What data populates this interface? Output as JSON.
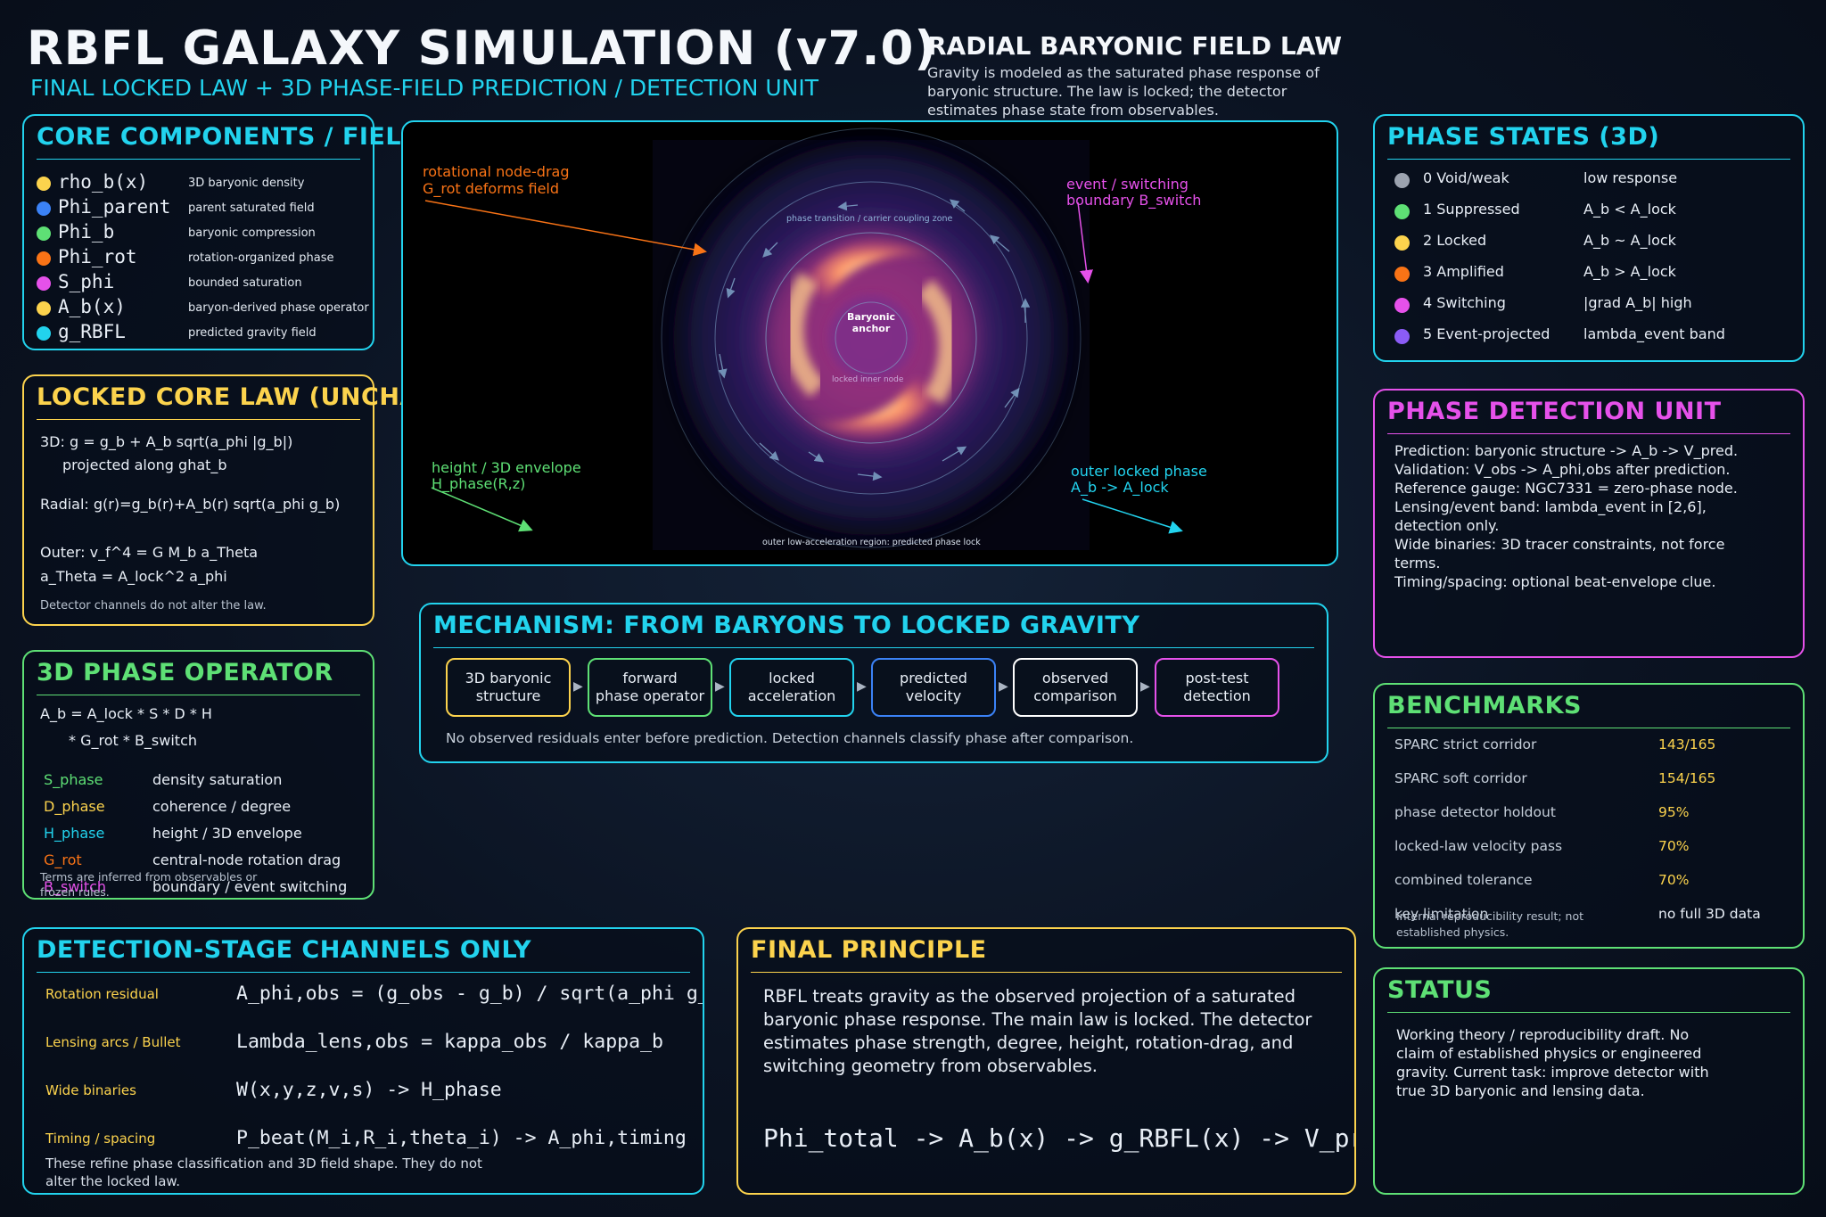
{
  "header": {
    "title": "RBFL GALAXY SIMULATION (v7.0)",
    "subtitle": "FINAL LOCKED LAW + 3D PHASE-FIELD PREDICTION / DETECTION UNIT",
    "law_title": "RADIAL BARYONIC FIELD LAW",
    "law_desc": [
      "Gravity is modeled as the saturated phase response of",
      "baryonic structure. The law is locked; the detector",
      "estimates phase state from observables."
    ]
  },
  "core": {
    "title": "CORE COMPONENTS / FIELDS",
    "items": [
      {
        "name": "rho_b(x)",
        "desc": "3D baryonic density",
        "color": "#fcd34d"
      },
      {
        "name": "Phi_parent",
        "desc": "parent saturated field",
        "color": "#3b82f6"
      },
      {
        "name": "Phi_b",
        "desc": "baryonic compression",
        "color": "#5ee075"
      },
      {
        "name": "Phi_rot",
        "desc": "rotation-organized phase",
        "color": "#f97316"
      },
      {
        "name": "S_phi",
        "desc": "bounded saturation",
        "color": "#e651ea"
      },
      {
        "name": "A_b(x)",
        "desc": "baryon-derived phase operator",
        "color": "#fcd34d"
      },
      {
        "name": "g_RBFL",
        "desc": "predicted gravity field",
        "color": "#22d3ee"
      }
    ]
  },
  "locked": {
    "title": "LOCKED CORE LAW (UNCHANGED)",
    "lines": [
      "3D: g = g_b + A_b sqrt(a_phi |g_b|)",
      "projected along ghat_b",
      "Radial: g(r)=g_b(r)+A_b(r) sqrt(a_phi g_b)",
      "Outer: v_f^4 = G M_b a_Theta",
      "a_Theta = A_lock^2 a_phi"
    ],
    "note": "Detector channels do not alter the law."
  },
  "operator": {
    "title": "3D PHASE OPERATOR",
    "eq1": "A_b = A_lock * S * D * H",
    "eq2": "* G_rot * B_switch",
    "terms": [
      {
        "name": "S_phase",
        "desc": "density saturation",
        "color": "#5ee075"
      },
      {
        "name": "D_phase",
        "desc": "coherence / degree",
        "color": "#fcd34d"
      },
      {
        "name": "H_phase",
        "desc": "height / 3D envelope",
        "color": "#22d3ee"
      },
      {
        "name": "G_rot",
        "desc": "central-node rotation drag",
        "color": "#f97316"
      },
      {
        "name": "B_switch",
        "desc": "boundary / event switching",
        "color": "#e651ea"
      }
    ],
    "note": [
      "Terms are inferred from observables or",
      "frozen rules."
    ]
  },
  "sim": {
    "label_rot": [
      "rotational node-drag",
      "G_rot deforms field"
    ],
    "label_event": [
      "event / switching",
      "boundary B_switch"
    ],
    "label_height": [
      "height / 3D envelope",
      "H_phase(R,z)"
    ],
    "label_outer": [
      "outer locked phase",
      "A_b -> A_lock"
    ],
    "zone_transition": "phase transition / carrier coupling zone",
    "anchor": [
      "Baryonic",
      "anchor"
    ],
    "inner_node": "locked inner node",
    "outer_region": "outer low-acceleration region: predicted phase lock"
  },
  "mechanism": {
    "title": "MECHANISM: FROM BARYONS TO LOCKED GRAVITY",
    "steps": [
      {
        "label": "3D baryonic\nstructure",
        "color": "#fcd34d"
      },
      {
        "label": "forward\nphase operator",
        "color": "#5ee075"
      },
      {
        "label": "locked\nacceleration",
        "color": "#22d3ee"
      },
      {
        "label": "predicted\nvelocity",
        "color": "#3b82f6"
      },
      {
        "label": "observed\ncomparison",
        "color": "#ffffff"
      },
      {
        "label": "post-test\ndetection",
        "color": "#e651ea"
      }
    ],
    "note": "No observed residuals enter before prediction. Detection channels classify phase after comparison."
  },
  "phase_states": {
    "title": "PHASE STATES (3D)",
    "items": [
      {
        "name": "0 Void/weak",
        "cond": "low response",
        "color": "#9ca3af"
      },
      {
        "name": "1 Suppressed",
        "cond": "A_b < A_lock",
        "color": "#5ee075"
      },
      {
        "name": "2 Locked",
        "cond": "A_b ~ A_lock",
        "color": "#fcd34d"
      },
      {
        "name": "3 Amplified",
        "cond": "A_b > A_lock",
        "color": "#f97316"
      },
      {
        "name": "4 Switching",
        "cond": "|grad A_b| high",
        "color": "#e651ea"
      },
      {
        "name": "5 Event-projected",
        "cond": "lambda_event band",
        "color": "#8b5cf6"
      }
    ]
  },
  "detection_unit": {
    "title": "PHASE DETECTION UNIT",
    "lines": [
      "Prediction: baryonic structure -> A_b -> V_pred.",
      "Validation: V_obs -> A_phi,obs after prediction.",
      "Reference gauge: NGC7331 = zero-phase node.",
      "Lensing/event band: lambda_event in [2,6],",
      "detection only.",
      "Wide binaries: 3D tracer constraints, not force",
      "terms.",
      "Timing/spacing: optional beat-envelope clue."
    ]
  },
  "benchmarks": {
    "title": "BENCHMARKS",
    "rows": [
      {
        "label": "SPARC strict corridor",
        "value": "143/165"
      },
      {
        "label": "SPARC soft corridor",
        "value": "154/165"
      },
      {
        "label": "phase detector holdout",
        "value": "95%"
      },
      {
        "label": "locked-law velocity pass",
        "value": "70%"
      },
      {
        "label": "combined tolerance",
        "value": "70%"
      },
      {
        "label": "key limitation",
        "value": "no full 3D data"
      }
    ],
    "note": [
      "Internal reproducibility result; not",
      "established physics."
    ]
  },
  "channels": {
    "title": "DETECTION-STAGE CHANNELS ONLY",
    "rows": [
      {
        "label": "Rotation residual",
        "eq": "A_phi,obs = (g_obs - g_b) / sqrt(a_phi g_b)"
      },
      {
        "label": "Lensing arcs / Bullet",
        "eq": "Lambda_lens,obs = kappa_obs / kappa_b"
      },
      {
        "label": "Wide binaries",
        "eq": "W(x,y,z,v,s) -> H_phase"
      },
      {
        "label": "Timing / spacing",
        "eq": "P_beat(M_i,R_i,theta_i) -> A_phi,timing"
      }
    ],
    "note": [
      "These refine phase classification and 3D field shape. They do not",
      "alter the locked law."
    ]
  },
  "final": {
    "title": "FINAL PRINCIPLE",
    "lines": [
      "RBFL treats gravity as the observed projection of a saturated",
      "baryonic phase response. The main law is locked. The detector",
      "estimates phase strength, degree, height, rotation-drag, and",
      "switching geometry from observables."
    ],
    "equation": "Phi_total -> A_b(x) -> g_RBFL(x) -> V_pred"
  },
  "status": {
    "title": "STATUS",
    "lines": [
      "Working theory / reproducibility draft. No",
      "claim of established physics or engineered",
      "gravity. Current task: improve detector with",
      "true 3D baryonic and lensing data."
    ]
  },
  "colors": {
    "cyan": "#22d3ee",
    "yellow": "#fcd34d",
    "green": "#5ee075",
    "magenta": "#e651ea",
    "orange": "#f97316"
  }
}
